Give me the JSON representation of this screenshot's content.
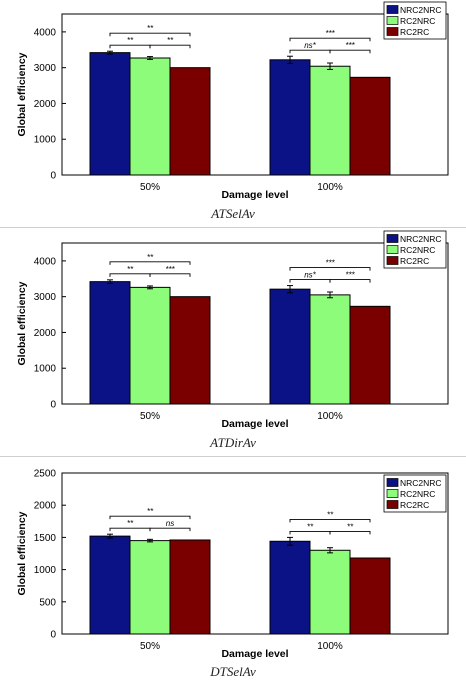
{
  "chart_data": [
    {
      "type": "bar",
      "caption": "ATSelAv",
      "xlabel": "Damage level",
      "ylabel": "Global efficiency",
      "ylim": [
        0,
        4500
      ],
      "yticks": [
        0,
        1000,
        2000,
        3000,
        4000
      ],
      "categories": [
        "50%",
        "100%"
      ],
      "legend_position": "top-right",
      "series": [
        {
          "name": "NRC2NRC",
          "color": "#0b1285",
          "values": [
            3420,
            3220
          ],
          "errors": [
            40,
            100
          ]
        },
        {
          "name": "RC2NRC",
          "color": "#8dfc7a",
          "values": [
            3270,
            3040
          ],
          "errors": [
            40,
            90
          ]
        },
        {
          "name": "RC2RC",
          "color": "#7a0000",
          "values": [
            3000,
            2730
          ],
          "errors": [
            0,
            0
          ]
        }
      ],
      "significance": [
        [
          {
            "a": 0,
            "b": 1,
            "label": "**"
          },
          {
            "a": 0,
            "b": 2,
            "label": "**"
          },
          {
            "a": 1,
            "b": 2,
            "label": "**"
          }
        ],
        [
          {
            "a": 0,
            "b": 1,
            "label": "ns*"
          },
          {
            "a": 0,
            "b": 2,
            "label": "***"
          },
          {
            "a": 1,
            "b": 2,
            "label": "***"
          }
        ]
      ]
    },
    {
      "type": "bar",
      "caption": "ATDirAv",
      "xlabel": "Damage level",
      "ylabel": "Global efficiency",
      "ylim": [
        0,
        4500
      ],
      "yticks": [
        0,
        1000,
        2000,
        3000,
        4000
      ],
      "categories": [
        "50%",
        "100%"
      ],
      "legend_position": "top-right",
      "series": [
        {
          "name": "NRC2NRC",
          "color": "#0b1285",
          "values": [
            3420,
            3210
          ],
          "errors": [
            50,
            100
          ]
        },
        {
          "name": "RC2NRC",
          "color": "#8dfc7a",
          "values": [
            3260,
            3050
          ],
          "errors": [
            40,
            80
          ]
        },
        {
          "name": "RC2RC",
          "color": "#7a0000",
          "values": [
            3000,
            2730
          ],
          "errors": [
            0,
            0
          ]
        }
      ],
      "significance": [
        [
          {
            "a": 0,
            "b": 1,
            "label": "**"
          },
          {
            "a": 0,
            "b": 2,
            "label": "**"
          },
          {
            "a": 1,
            "b": 2,
            "label": "***"
          }
        ],
        [
          {
            "a": 0,
            "b": 1,
            "label": "ns*"
          },
          {
            "a": 0,
            "b": 2,
            "label": "***"
          },
          {
            "a": 1,
            "b": 2,
            "label": "***"
          }
        ]
      ]
    },
    {
      "type": "bar",
      "caption": "DTSelAv",
      "xlabel": "Damage level",
      "ylabel": "Global efficiency",
      "ylim": [
        0,
        2500
      ],
      "yticks": [
        0,
        500,
        1000,
        1500,
        2000,
        2500
      ],
      "categories": [
        "50%",
        "100%"
      ],
      "legend_position": "top-right",
      "series": [
        {
          "name": "NRC2NRC",
          "color": "#0b1285",
          "values": [
            1520,
            1440
          ],
          "errors": [
            30,
            60
          ]
        },
        {
          "name": "RC2NRC",
          "color": "#8dfc7a",
          "values": [
            1450,
            1300
          ],
          "errors": [
            20,
            40
          ]
        },
        {
          "name": "RC2RC",
          "color": "#7a0000",
          "values": [
            1460,
            1180
          ],
          "errors": [
            0,
            0
          ]
        }
      ],
      "significance": [
        [
          {
            "a": 0,
            "b": 1,
            "label": "**"
          },
          {
            "a": 0,
            "b": 2,
            "label": "**"
          },
          {
            "a": 1,
            "b": 2,
            "label": "ns"
          }
        ],
        [
          {
            "a": 0,
            "b": 1,
            "label": "**"
          },
          {
            "a": 0,
            "b": 2,
            "label": "**"
          },
          {
            "a": 1,
            "b": 2,
            "label": "**"
          }
        ]
      ]
    }
  ]
}
